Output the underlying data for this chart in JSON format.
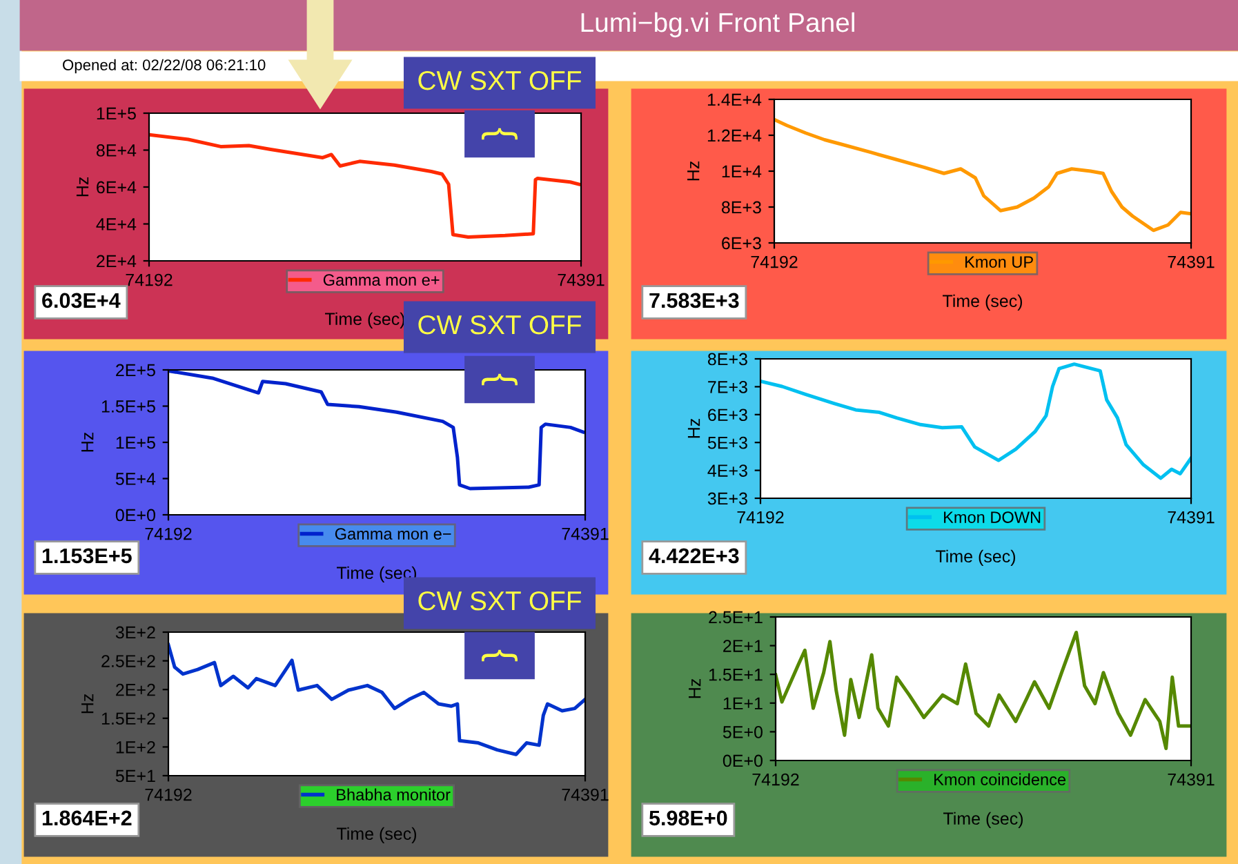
{
  "chart_data": [
    {
      "type": "line",
      "title": "Lumi−bg.vi Front Panel",
      "subtitle": "Opened at: 02/22/08 06:21:10",
      "xlabel": "Time (sec)",
      "ylabel": "Hz",
      "legend": "bottom",
      "grid": false,
      "xlim": [
        74192,
        74391
      ],
      "xticks": [
        74192,
        74391
      ],
      "ylim": [
        20000,
        100000
      ],
      "yticks": [
        {
          "value": 20000,
          "label": "2E+4"
        },
        {
          "value": 40000,
          "label": "4E+4"
        },
        {
          "value": 60000,
          "label": "6E+4"
        },
        {
          "value": 80000,
          "label": "8E+4"
        },
        {
          "value": 100000,
          "label": "1E+5"
        }
      ],
      "annotations": [
        "6.03E+4",
        "CW SXT OFF",
        "{"
      ],
      "series": [
        {
          "name": "Gamma mon e+",
          "color": "#ff2a00",
          "x": [
            74192,
            74210,
            74225,
            74238,
            74248,
            74263,
            74272,
            74276,
            74280,
            74289,
            74305,
            74322,
            74327,
            74330,
            74332,
            74339,
            74356,
            74369,
            74370,
            74371,
            74386,
            74390
          ],
          "values": [
            88300,
            85800,
            81900,
            82400,
            80400,
            77600,
            75900,
            77600,
            71400,
            73900,
            71900,
            68400,
            67000,
            61500,
            34200,
            32900,
            33700,
            34700,
            64000,
            64700,
            62700,
            61500
          ]
        }
      ]
    },
    {
      "type": "line",
      "xlabel": "Time (sec)",
      "ylabel": "Hz",
      "legend": "bottom",
      "grid": false,
      "xlim": [
        74192,
        74391
      ],
      "xticks": [
        74192,
        74391
      ],
      "ylim": [
        6000,
        14000
      ],
      "yticks": [
        {
          "value": 6000,
          "label": "6E+3"
        },
        {
          "value": 8000,
          "label": "8E+3"
        },
        {
          "value": 10000,
          "label": "1E+4"
        },
        {
          "value": 12000,
          "label": "1.2E+4"
        },
        {
          "value": 14000,
          "label": "1.4E+4"
        }
      ],
      "annotations": [
        "7.583E+3"
      ],
      "series": [
        {
          "name": "Kmon UP",
          "color": "#ff9900",
          "x": [
            74192,
            74198,
            74207,
            74216,
            74224,
            74238,
            74251,
            74264,
            74273,
            74281,
            74288,
            74292,
            74300,
            74308,
            74316,
            74323,
            74327,
            74334,
            74343,
            74349,
            74353,
            74358,
            74363,
            74373,
            74380,
            74386,
            74391
          ],
          "values": [
            12875,
            12550,
            12125,
            11750,
            11500,
            11050,
            10625,
            10200,
            9875,
            10125,
            9625,
            8625,
            7800,
            8000,
            8500,
            9125,
            9875,
            10125,
            10000,
            9875,
            8875,
            8000,
            7500,
            6700,
            7000,
            7700,
            7625
          ]
        }
      ]
    },
    {
      "type": "line",
      "xlabel": "Time (sec)",
      "ylabel": "Hz",
      "legend": "bottom",
      "grid": false,
      "xlim": [
        74192,
        74391
      ],
      "xticks": [
        74192,
        74391
      ],
      "ylim": [
        0,
        200000
      ],
      "yticks": [
        {
          "value": 0,
          "label": "0E+0"
        },
        {
          "value": 50000,
          "label": "5E+4"
        },
        {
          "value": 100000,
          "label": "1E+5"
        },
        {
          "value": 150000,
          "label": "1.5E+5"
        },
        {
          "value": 200000,
          "label": "2E+5"
        }
      ],
      "annotations": [
        "1.153E+5",
        "CW SXT OFF",
        "{"
      ],
      "series": [
        {
          "name": "Gamma mon e−",
          "color": "#0022cc",
          "x": [
            74192,
            74213,
            74235,
            74237,
            74248,
            74265,
            74268,
            74283,
            74301,
            74323,
            74328,
            74330,
            74331,
            74336,
            74364,
            74369,
            74370,
            74372,
            74384,
            74390
          ],
          "values": [
            198700,
            188600,
            168300,
            184100,
            181000,
            169500,
            152400,
            149200,
            141600,
            128900,
            120600,
            79400,
            41300,
            36200,
            38100,
            41300,
            120600,
            125100,
            120600,
            114300
          ]
        }
      ]
    },
    {
      "type": "line",
      "xlabel": "Time (sec)",
      "ylabel": "Hz",
      "legend": "bottom",
      "grid": false,
      "xlim": [
        74192,
        74391
      ],
      "xticks": [
        74192,
        74391
      ],
      "ylim": [
        3000,
        8000
      ],
      "yticks": [
        {
          "value": 3000,
          "label": "3E+3"
        },
        {
          "value": 4000,
          "label": "4E+3"
        },
        {
          "value": 5000,
          "label": "5E+3"
        },
        {
          "value": 6000,
          "label": "6E+3"
        },
        {
          "value": 7000,
          "label": "7E+3"
        },
        {
          "value": 8000,
          "label": "8E+3"
        }
      ],
      "annotations": [
        "4.422E+3"
      ],
      "series": [
        {
          "name": "Kmon DOWN",
          "color": "#00c0f0",
          "x": [
            74192,
            74202,
            74213,
            74226,
            74236,
            74247,
            74255,
            74266,
            74276,
            74285,
            74291,
            74302,
            74310,
            74319,
            74324,
            74327,
            74330,
            74337,
            74349,
            74352,
            74357,
            74361,
            74369,
            74377,
            74382,
            74386,
            74391
          ],
          "values": [
            7200,
            7010,
            6720,
            6400,
            6170,
            6080,
            5880,
            5640,
            5530,
            5560,
            4840,
            4360,
            4760,
            5400,
            5960,
            7010,
            7650,
            7810,
            7570,
            6530,
            5880,
            4920,
            4200,
            3720,
            4040,
            3880,
            4440
          ]
        }
      ]
    },
    {
      "type": "line",
      "xlabel": "Time (sec)",
      "ylabel": "Hz",
      "legend": "bottom",
      "grid": false,
      "xlim": [
        74192,
        74391
      ],
      "xticks": [
        74192,
        74391
      ],
      "ylim": [
        50,
        300
      ],
      "yticks": [
        {
          "value": 50,
          "label": "5E+1"
        },
        {
          "value": 100,
          "label": "1E+2"
        },
        {
          "value": 150,
          "label": "1.5E+2"
        },
        {
          "value": 200,
          "label": "2E+2"
        },
        {
          "value": 250,
          "label": "2.5E+2"
        },
        {
          "value": 300,
          "label": "3E+2"
        }
      ],
      "annotations": [
        "1.864E+2",
        "CW SXT OFF",
        "{"
      ],
      "series": [
        {
          "name": "Bhabha monitor",
          "color": "#0033cc",
          "x": [
            74192,
            74195,
            74199,
            74206,
            74214,
            74217,
            74223,
            74230,
            74234,
            74243,
            74251,
            74254,
            74263,
            74270,
            74278,
            74287,
            74294,
            74300,
            74307,
            74314,
            74321,
            74327,
            74330,
            74331,
            74340,
            74349,
            74358,
            74363,
            74369,
            74371,
            74373,
            74380,
            74386,
            74391
          ],
          "values": [
            278,
            239,
            227,
            235,
            247,
            207,
            223,
            203,
            219,
            207,
            251,
            199,
            207,
            183,
            199,
            207,
            195,
            167,
            183,
            195,
            175,
            171,
            175,
            111,
            107,
            95,
            87,
            107,
            103,
            155,
            175,
            163,
            167,
            183
          ]
        }
      ]
    },
    {
      "type": "line",
      "xlabel": "Time (sec)",
      "ylabel": "Hz",
      "legend": "bottom",
      "grid": false,
      "xlim": [
        74192,
        74391
      ],
      "xticks": [
        74192,
        74391
      ],
      "ylim": [
        0,
        25
      ],
      "yticks": [
        {
          "value": 0,
          "label": "0E+0"
        },
        {
          "value": 5,
          "label": "5E+0"
        },
        {
          "value": 10,
          "label": "1E+1"
        },
        {
          "value": 15,
          "label": "1.5E+1"
        },
        {
          "value": 20,
          "label": "2E+1"
        },
        {
          "value": 25,
          "label": "2.5E+1"
        }
      ],
      "annotations": [
        "5.98E+0"
      ],
      "series": [
        {
          "name": "Kmon coincidence",
          "color": "#558800",
          "x": [
            74192,
            74195,
            74203,
            74206,
            74210,
            74215,
            74218,
            74221,
            74225,
            74228,
            74232,
            74238,
            74241,
            74246,
            74250,
            74256,
            74263,
            74272,
            74279,
            74283,
            74288,
            74294,
            74299,
            74307,
            74312,
            74316,
            74323,
            74329,
            74336,
            74340,
            74345,
            74349,
            74356,
            74362,
            74369,
            74376,
            74379,
            74382,
            74385,
            74391
          ],
          "values": [
            14.9,
            10.2,
            16.8,
            19.2,
            9.1,
            15.3,
            20.7,
            12.2,
            4.4,
            14.1,
            7.5,
            18.4,
            9.1,
            6.0,
            14.5,
            11.4,
            7.5,
            11.4,
            9.9,
            16.8,
            8.2,
            6.0,
            11.4,
            6.8,
            10.6,
            13.7,
            9.1,
            15.3,
            22.3,
            13.0,
            9.9,
            15.3,
            8.3,
            4.4,
            10.6,
            6.8,
            2.1,
            14.5,
            6.0,
            6.0
          ]
        }
      ]
    }
  ]
}
